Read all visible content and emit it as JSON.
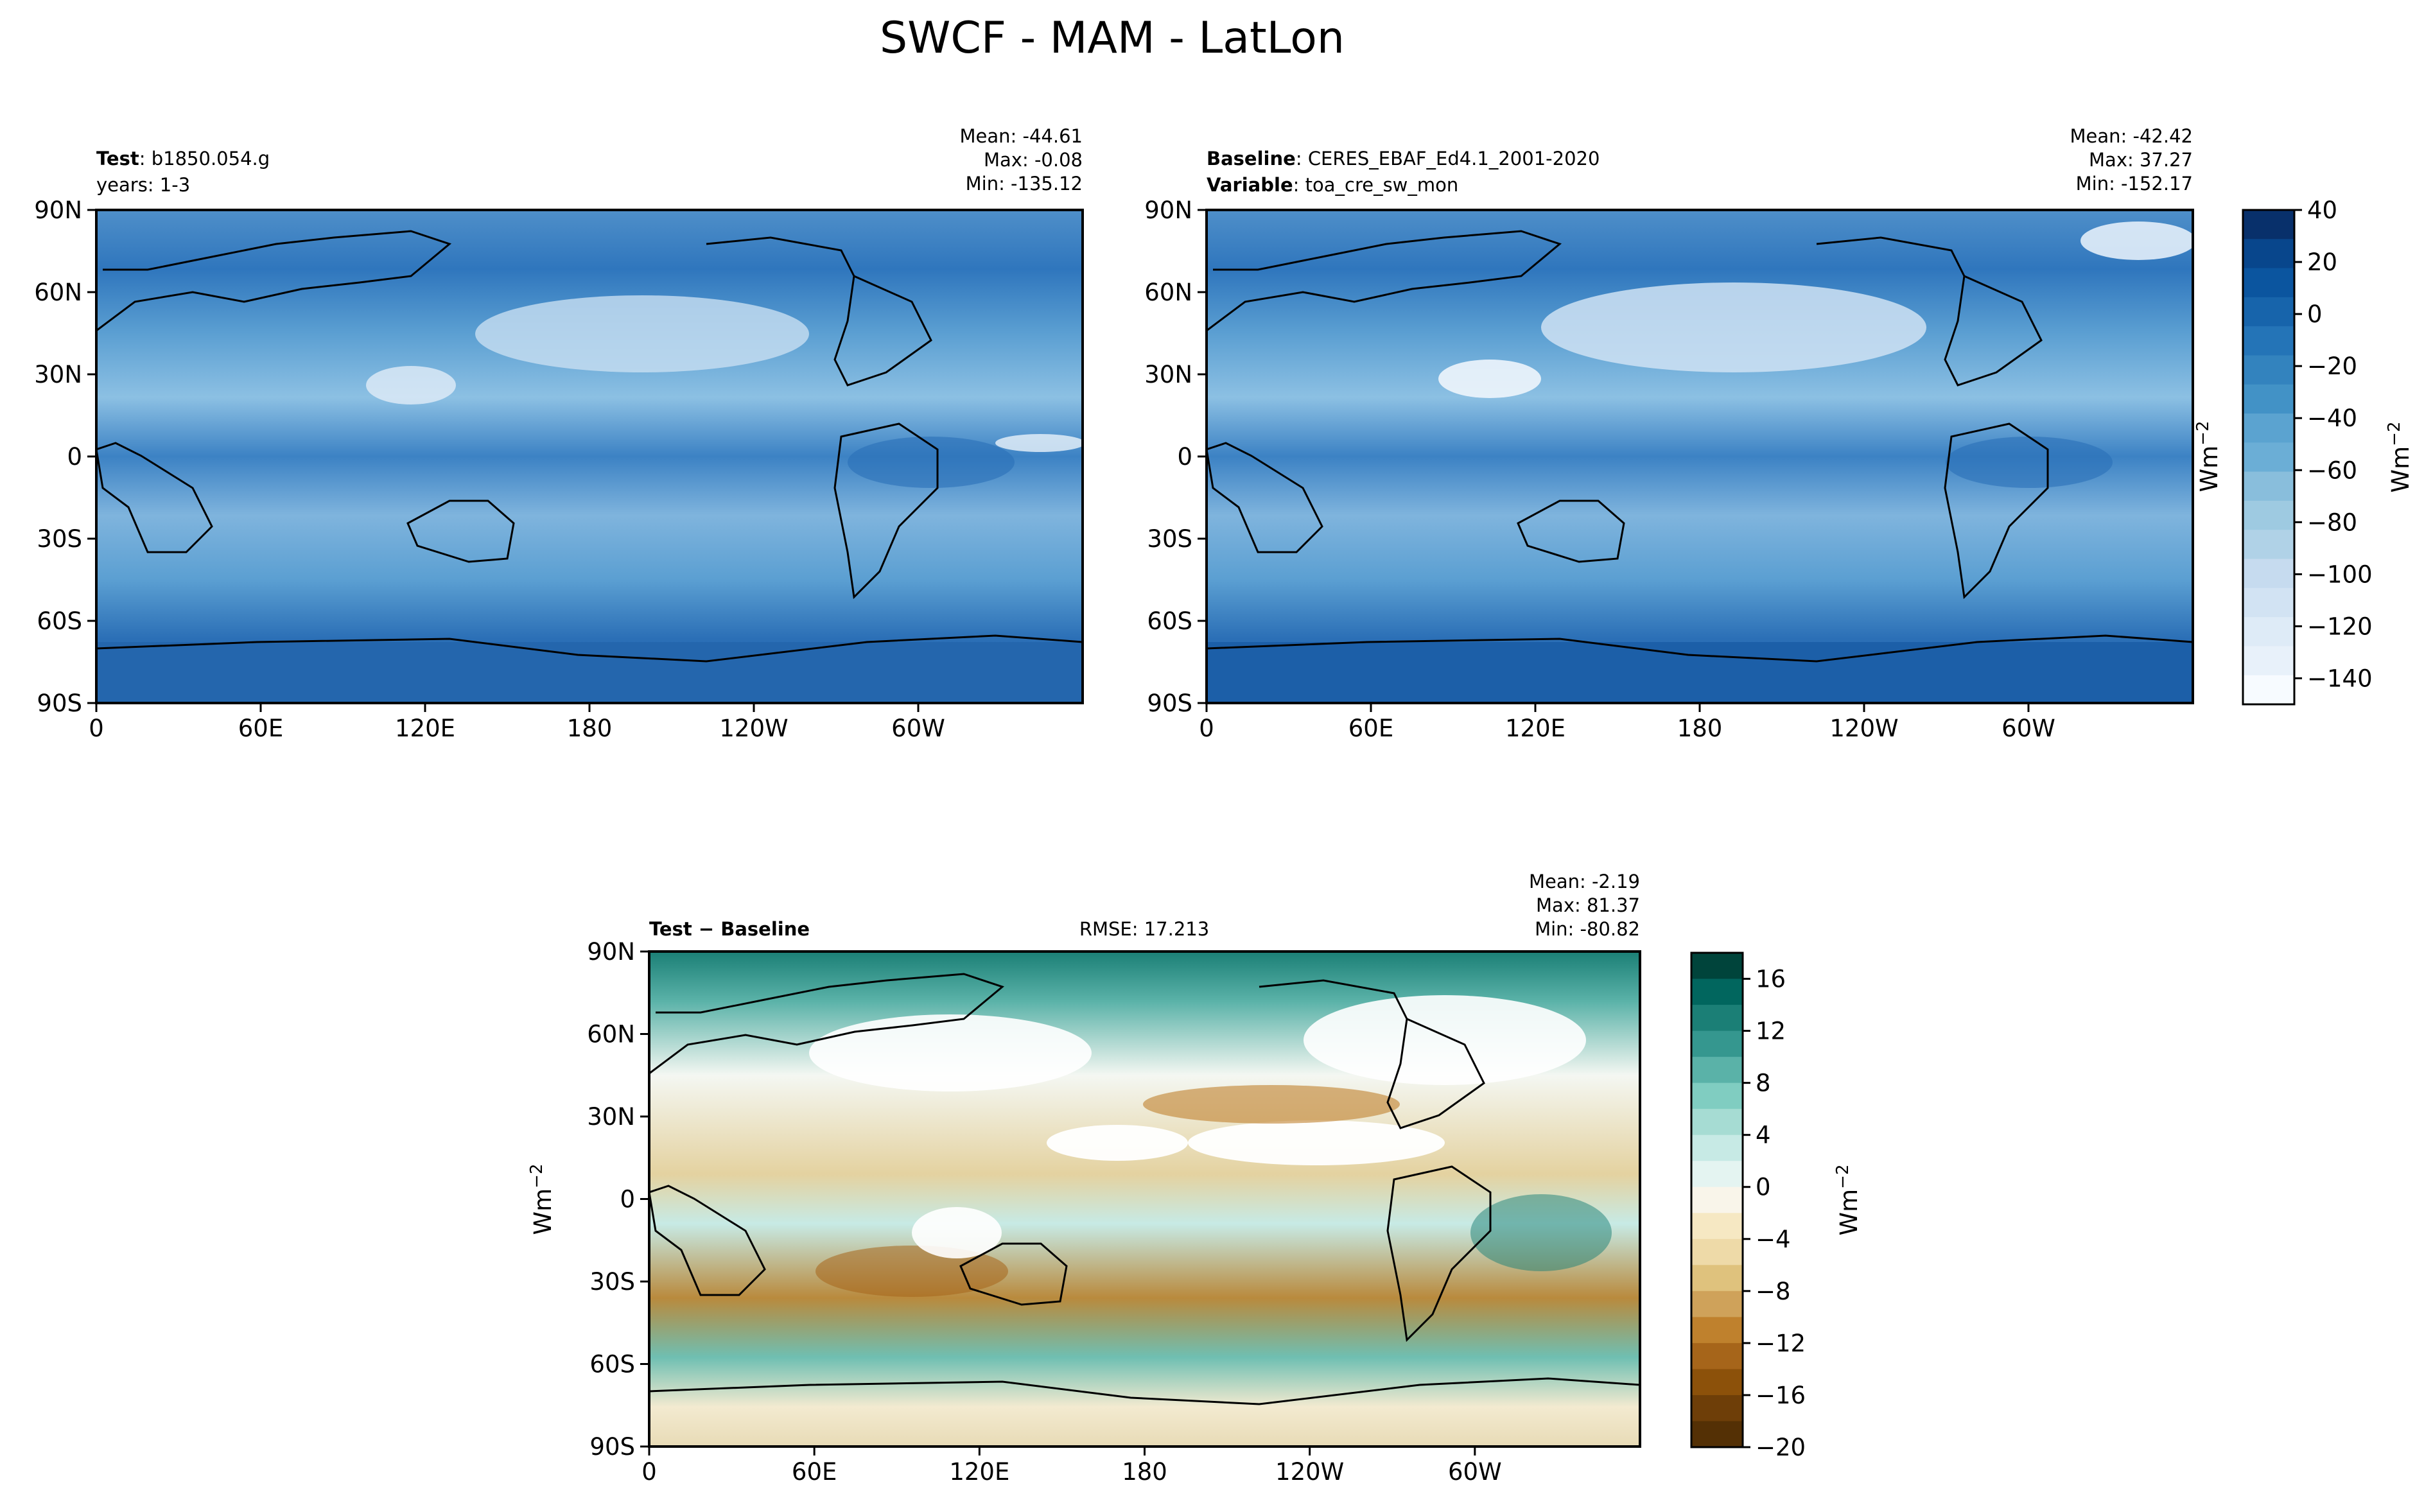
{
  "figure_title": "SWCF - MAM - LatLon",
  "unit_base": "Wm",
  "unit_exp": "−2",
  "x_tick_labels": [
    "0",
    "60E",
    "120E",
    "180",
    "120W",
    "60W"
  ],
  "y_tick_labels": [
    "90N",
    "60N",
    "30N",
    "0",
    "30S",
    "60S",
    "90S"
  ],
  "panels": {
    "test": {
      "left_bold": "Test",
      "left_text": "b1850.054.g",
      "left_line2": "years: 1-3",
      "stats": [
        "Mean: -44.61",
        "Max: -0.08",
        "Min: -135.12"
      ]
    },
    "baseline": {
      "left_bold": "Baseline",
      "left_text": "CERES_EBAF_Ed4.1_2001-2020",
      "left2_bold": "Variable",
      "left2_text": "toa_cre_sw_mon",
      "stats": [
        "Mean: -42.42",
        "Max: 37.27",
        "Min: -152.17"
      ]
    },
    "diff": {
      "left_bold": "Test − Baseline",
      "center_text": "RMSE: 17.213",
      "stats": [
        "Mean: -2.19",
        "Max: 81.37",
        "Min: -80.82"
      ]
    }
  },
  "colorbar_main": {
    "tick_labels": [
      "40",
      "20",
      "0",
      "−20",
      "−40",
      "−60",
      "−80",
      "−100",
      "−120",
      "−140"
    ],
    "colors": [
      "#08306b",
      "#08468c",
      "#0b559f",
      "#1764ab",
      "#2474b7",
      "#3383be",
      "#4292c6",
      "#5ba3d0",
      "#6baed6",
      "#89bedc",
      "#9ecae1",
      "#b0d2e7",
      "#c6dbef",
      "#d2e3f3",
      "#deebf7",
      "#e8f1fa",
      "#f7fbff"
    ]
  },
  "colorbar_diff": {
    "tick_labels": [
      "16",
      "12",
      "8",
      "4",
      "0",
      "−4",
      "−8",
      "−12",
      "−16",
      "−20"
    ],
    "colors": [
      "#00443b",
      "#01665e",
      "#1b7f76",
      "#35978f",
      "#5ab2a8",
      "#80cdc1",
      "#a6dcd3",
      "#c7eae5",
      "#e4f4f1",
      "#f9f5ea",
      "#f6e8c3",
      "#eedaa8",
      "#dfc27d",
      "#cfa25a",
      "#bf812d",
      "#a6651a",
      "#8c510a",
      "#6e3e08",
      "#543005"
    ]
  },
  "chart_data": [
    {
      "type": "heatmap",
      "title": "Test: b1850.054.g (years: 1-3)",
      "variable": "SWCF",
      "season": "MAM",
      "units": "Wm^-2",
      "lon_ticks": [
        "0",
        "60E",
        "120E",
        "180",
        "120W",
        "60W"
      ],
      "lat_ticks": [
        "90N",
        "60N",
        "30N",
        "0",
        "30S",
        "60S",
        "90S"
      ],
      "mean": -44.61,
      "max": -0.08,
      "min": -135.12,
      "color_range": [
        -150,
        40
      ]
    },
    {
      "type": "heatmap",
      "title": "Baseline: CERES_EBAF_Ed4.1_2001-2020",
      "variable": "toa_cre_sw_mon",
      "season": "MAM",
      "units": "Wm^-2",
      "lon_ticks": [
        "0",
        "60E",
        "120E",
        "180",
        "120W",
        "60W"
      ],
      "lat_ticks": [
        "90N",
        "60N",
        "30N",
        "0",
        "30S",
        "60S",
        "90S"
      ],
      "mean": -42.42,
      "max": 37.27,
      "min": -152.17,
      "color_range": [
        -150,
        40
      ]
    },
    {
      "type": "heatmap",
      "title": "Test − Baseline",
      "rmse": 17.213,
      "units": "Wm^-2",
      "lon_ticks": [
        "0",
        "60E",
        "120E",
        "180",
        "120W",
        "60W"
      ],
      "lat_ticks": [
        "90N",
        "60N",
        "30N",
        "0",
        "30S",
        "60S",
        "90S"
      ],
      "mean": -2.19,
      "max": 81.37,
      "min": -80.82,
      "color_range": [
        -20,
        18
      ]
    }
  ]
}
